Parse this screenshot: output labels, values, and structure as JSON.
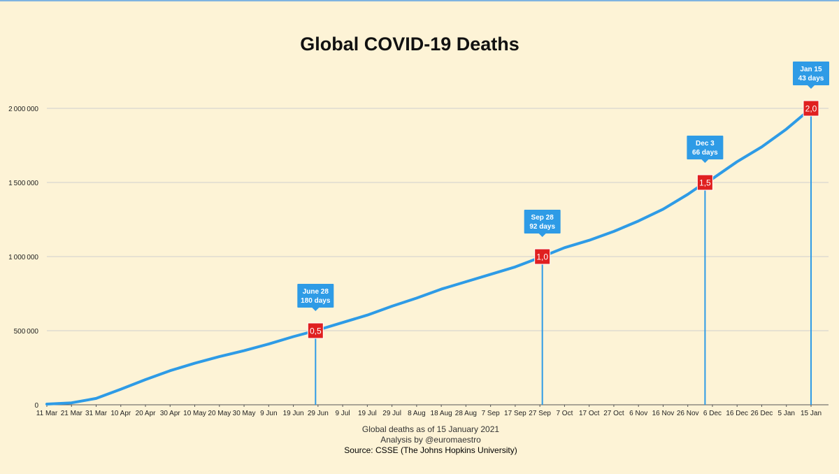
{
  "chart_data": {
    "type": "line",
    "title": "Global COVID-19 Deaths",
    "xlabel": "",
    "ylabel": "",
    "ylim": [
      0,
      2000000
    ],
    "yticks": [
      {
        "value": 0,
        "label": "0"
      },
      {
        "value": 500000,
        "label": "500000"
      },
      {
        "value": 1000000,
        "label": "1000000"
      },
      {
        "value": 1500000,
        "label": "1500000"
      },
      {
        "value": 2000000,
        "label": "2000000"
      }
    ],
    "x_axis_type": "date",
    "x_range": [
      "2020-03-11",
      "2021-01-15"
    ],
    "xticks": [
      {
        "date": "2020-03-11",
        "label": "11 Mar"
      },
      {
        "date": "2020-03-21",
        "label": "21 Mar"
      },
      {
        "date": "2020-03-31",
        "label": "31 Mar"
      },
      {
        "date": "2020-04-10",
        "label": "10 Apr"
      },
      {
        "date": "2020-04-20",
        "label": "20 Apr"
      },
      {
        "date": "2020-04-30",
        "label": "30 Apr"
      },
      {
        "date": "2020-05-10",
        "label": "10 May"
      },
      {
        "date": "2020-05-20",
        "label": "20 May"
      },
      {
        "date": "2020-05-30",
        "label": "30 May"
      },
      {
        "date": "2020-06-09",
        "label": "9 Jun"
      },
      {
        "date": "2020-06-19",
        "label": "19 Jun"
      },
      {
        "date": "2020-06-29",
        "label": "29 Jun"
      },
      {
        "date": "2020-07-09",
        "label": "9 Jul"
      },
      {
        "date": "2020-07-19",
        "label": "19 Jul"
      },
      {
        "date": "2020-07-29",
        "label": "29 Jul"
      },
      {
        "date": "2020-08-08",
        "label": "8 Aug"
      },
      {
        "date": "2020-08-18",
        "label": "18 Aug"
      },
      {
        "date": "2020-08-28",
        "label": "28 Aug"
      },
      {
        "date": "2020-09-07",
        "label": "7 Sep"
      },
      {
        "date": "2020-09-17",
        "label": "17 Sep"
      },
      {
        "date": "2020-09-27",
        "label": "27 Sep"
      },
      {
        "date": "2020-10-07",
        "label": "7 Oct"
      },
      {
        "date": "2020-10-17",
        "label": "17 Oct"
      },
      {
        "date": "2020-10-27",
        "label": "27 Oct"
      },
      {
        "date": "2020-11-06",
        "label": "6 Nov"
      },
      {
        "date": "2020-11-16",
        "label": "16 Nov"
      },
      {
        "date": "2020-11-26",
        "label": "26 Nov"
      },
      {
        "date": "2020-12-06",
        "label": "6 Dec"
      },
      {
        "date": "2020-12-16",
        "label": "16 Dec"
      },
      {
        "date": "2020-12-26",
        "label": "26 Dec"
      },
      {
        "date": "2021-01-05",
        "label": "5 Jan"
      },
      {
        "date": "2021-01-15",
        "label": "15 Jan"
      }
    ],
    "grid": true,
    "line_color": "#2e9be6",
    "series": [
      {
        "x": [
          "2020-03-11",
          "2020-03-21",
          "2020-03-31",
          "2020-04-10",
          "2020-04-20",
          "2020-04-30",
          "2020-05-10",
          "2020-05-20",
          "2020-05-30",
          "2020-06-09",
          "2020-06-19",
          "2020-06-28",
          "2020-07-09",
          "2020-07-19",
          "2020-07-29",
          "2020-08-08",
          "2020-08-18",
          "2020-08-28",
          "2020-09-07",
          "2020-09-17",
          "2020-09-28",
          "2020-10-07",
          "2020-10-17",
          "2020-10-27",
          "2020-11-06",
          "2020-11-16",
          "2020-11-26",
          "2020-12-03",
          "2020-12-06",
          "2020-12-16",
          "2020-12-26",
          "2021-01-05",
          "2021-01-15"
        ],
        "y": [
          4600,
          13000,
          43000,
          105000,
          170000,
          230000,
          280000,
          325000,
          365000,
          410000,
          460000,
          500000,
          555000,
          605000,
          665000,
          720000,
          780000,
          830000,
          880000,
          930000,
          1000000,
          1060000,
          1110000,
          1170000,
          1240000,
          1320000,
          1420000,
          1500000,
          1525000,
          1640000,
          1740000,
          1860000,
          2000000
        ]
      }
    ],
    "annotations": [
      {
        "date": "2020-06-28",
        "value": 500000,
        "marker_label": "0,5",
        "callout_line1": "June 28",
        "callout_line2": "180 days"
      },
      {
        "date": "2020-09-28",
        "value": 1000000,
        "marker_label": "1,0",
        "callout_line1": "Sep 28",
        "callout_line2": "92 days"
      },
      {
        "date": "2020-12-03",
        "value": 1500000,
        "marker_label": "1,5",
        "callout_line1": "Dec 3",
        "callout_line2": "66 days"
      },
      {
        "date": "2021-01-15",
        "value": 2000000,
        "marker_label": "2,0",
        "callout_line1": "Jan 15",
        "callout_line2": "43 days"
      }
    ],
    "marker_color": "#e02020",
    "callout_color": "#2e9be6"
  },
  "footer": {
    "line1": "Global deaths as of 15 January 2021",
    "line2": "Analysis by @euromaestro",
    "line3": "Source: CSSE (The Johns Hopkins University)"
  }
}
